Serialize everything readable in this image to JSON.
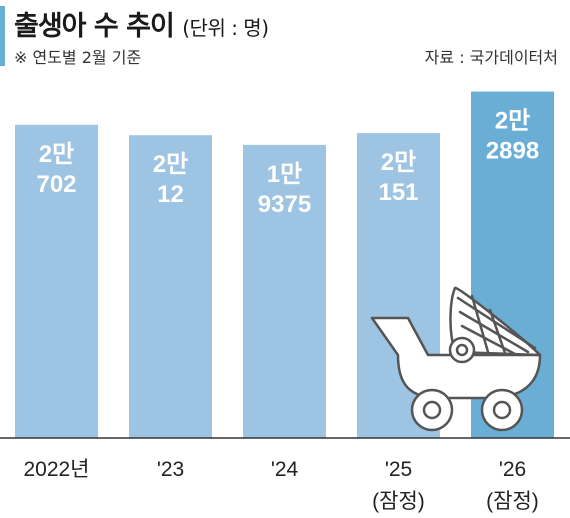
{
  "title": "출생아 수 추이",
  "unit": "(단위 : 명)",
  "note": "※ 연도별 2월 기준",
  "source": "자료 : 국가데이터처",
  "colors": {
    "bar": "#9dc4e3",
    "bar_highlight": "#6aaed6",
    "accent": "#6aaed6",
    "baseline": "#333333"
  },
  "icons": [
    "baby-stroller-icon"
  ],
  "chart_data": {
    "type": "bar",
    "title": "출생아 수 추이",
    "xlabel": "",
    "ylabel": "",
    "categories": [
      [
        "2022년"
      ],
      [
        "'23"
      ],
      [
        "'24"
      ],
      [
        "'25",
        "(잠정)"
      ],
      [
        "'26",
        "(잠정)"
      ]
    ],
    "values": [
      20702,
      20012,
      19375,
      20151,
      22898
    ],
    "data_labels": [
      [
        "2만",
        "702"
      ],
      [
        "2만",
        "12"
      ],
      [
        "1만",
        "9375"
      ],
      [
        "2만",
        "151"
      ],
      [
        "2만",
        "2898"
      ]
    ],
    "highlight_index": 4,
    "ylim": [
      0,
      23000
    ],
    "grid": false,
    "legend": "none"
  }
}
